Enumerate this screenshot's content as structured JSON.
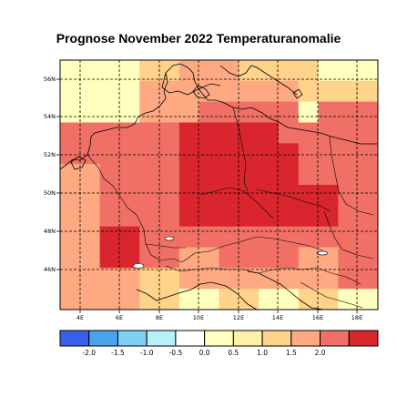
{
  "title": "Prognose November 2022 Temperaturanomalie",
  "lat_labels": [
    "56N",
    "54N",
    "52N",
    "50N",
    "48N",
    "46N"
  ],
  "lon_labels": [
    "4E",
    "6E",
    "8E",
    "10E",
    "12E",
    "14E",
    "16E",
    "18E"
  ],
  "colorbar": {
    "colors": [
      "#3a5fe8",
      "#4aa3ee",
      "#7fd0f7",
      "#b8f0f7",
      "#ffffff",
      "#ffffbe",
      "#fff0a8",
      "#ffd38a",
      "#ffa982",
      "#f07065",
      "#d9262e"
    ],
    "labels": [
      "-2.0",
      "-1.5",
      "-1.0",
      "-0.5",
      "0.0",
      "0.5",
      "1.0",
      "1.5",
      "2.0"
    ]
  },
  "grid_colors": {
    "0": "#ffffbe",
    "1": "#ffd38a",
    "2": "#ffa982",
    "3": "#f07065",
    "4": "#d9262e"
  },
  "anomaly_grid": [
    [
      0,
      0,
      0,
      0,
      1,
      1,
      2,
      2,
      2,
      1,
      1,
      1,
      1,
      0,
      0,
      0
    ],
    [
      0,
      0,
      0,
      0,
      2,
      2,
      2,
      2,
      2,
      2,
      2,
      2,
      1,
      1,
      1,
      1
    ],
    [
      0,
      0,
      0,
      0,
      2,
      2,
      2,
      3,
      3,
      3,
      3,
      3,
      0,
      3,
      3,
      3
    ],
    [
      3,
      3,
      3,
      3,
      3,
      3,
      4,
      4,
      4,
      4,
      4,
      3,
      3,
      3,
      3,
      3
    ],
    [
      3,
      3,
      3,
      3,
      3,
      3,
      4,
      4,
      4,
      4,
      4,
      4,
      3,
      3,
      3,
      3
    ],
    [
      2,
      2,
      3,
      3,
      3,
      3,
      4,
      4,
      4,
      4,
      4,
      4,
      3,
      3,
      3,
      3
    ],
    [
      2,
      2,
      3,
      3,
      3,
      3,
      4,
      4,
      4,
      4,
      4,
      4,
      4,
      4,
      3,
      3
    ],
    [
      2,
      2,
      3,
      3,
      3,
      3,
      4,
      4,
      4,
      4,
      4,
      4,
      4,
      4,
      3,
      3
    ],
    [
      2,
      2,
      4,
      4,
      3,
      3,
      3,
      3,
      3,
      3,
      3,
      3,
      3,
      3,
      3,
      3
    ],
    [
      2,
      2,
      4,
      4,
      3,
      3,
      2,
      2,
      3,
      3,
      3,
      3,
      2,
      2,
      3,
      3
    ],
    [
      2,
      2,
      2,
      2,
      1,
      1,
      2,
      2,
      2,
      2,
      2,
      2,
      2,
      2,
      3,
      3
    ],
    [
      2,
      2,
      2,
      2,
      1,
      1,
      0,
      0,
      1,
      1,
      0,
      0,
      1,
      1,
      0,
      0
    ]
  ]
}
